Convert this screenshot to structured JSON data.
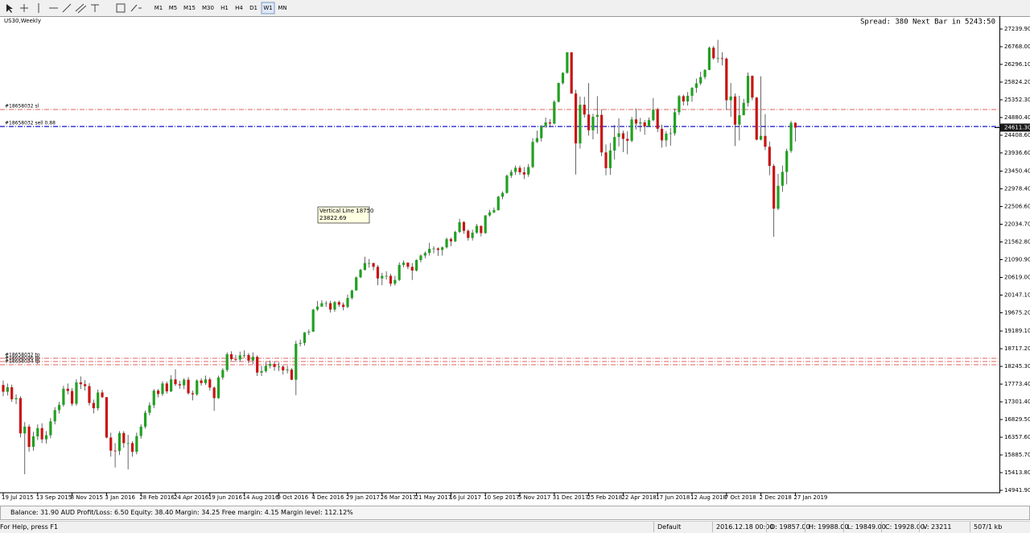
{
  "toolbar": {
    "timeframes": [
      "M1",
      "M5",
      "M15",
      "M30",
      "H1",
      "H4",
      "D1",
      "W1",
      "MN"
    ],
    "active": "W1"
  },
  "chart_data": {
    "type": "candlestick",
    "title": "US30,Weekly",
    "info": "Spread: 380 Next Bar in 5243:50",
    "up_color": "#22a022",
    "down_color": "#c81414",
    "wick_color": "#404040",
    "categories": [
      "19 Jul 2015",
      null,
      null,
      null,
      null,
      null,
      null,
      null,
      "13 Sep 2015",
      null,
      null,
      null,
      null,
      null,
      null,
      null,
      "8 Nov 2015",
      null,
      null,
      null,
      null,
      null,
      null,
      null,
      "3 Jan 2016",
      null,
      null,
      null,
      null,
      null,
      null,
      null,
      "28 Feb 2016",
      null,
      null,
      null,
      null,
      null,
      null,
      null,
      "24 Apr 2016",
      null,
      null,
      null,
      null,
      null,
      null,
      null,
      "19 Jun 2016",
      null,
      null,
      null,
      null,
      null,
      null,
      null,
      "14 Aug 2016",
      null,
      null,
      null,
      null,
      null,
      null,
      null,
      "9 Oct 2016",
      null,
      null,
      null,
      null,
      null,
      null,
      null,
      "4 Dec 2016",
      null,
      null,
      null,
      null,
      null,
      null,
      null,
      "29 Jan 2017",
      null,
      null,
      null,
      null,
      null,
      null,
      null,
      "26 Mar 2017",
      null,
      null,
      null,
      null,
      null,
      null,
      null,
      "21 May 2017",
      null,
      null,
      null,
      null,
      null,
      null,
      null,
      "16 Jul 2017",
      null,
      null,
      null,
      null,
      null,
      null,
      null,
      "10 Sep 2017",
      null,
      null,
      null,
      null,
      null,
      null,
      null,
      "5 Nov 2017",
      null,
      null,
      null,
      null,
      null,
      null,
      null,
      "31 Dec 2017",
      null,
      null,
      null,
      null,
      null,
      null,
      null,
      "25 Feb 2018",
      null,
      null,
      null,
      null,
      null,
      null,
      null,
      "22 Apr 2018",
      null,
      null,
      null,
      null,
      null,
      null,
      null,
      "17 Jun 2018",
      null,
      null,
      null,
      null,
      null,
      null,
      null,
      "12 Aug 2018",
      null,
      null,
      null,
      null,
      null,
      null,
      null,
      "7 Oct 2018",
      null,
      null,
      null,
      null,
      null,
      null,
      null,
      "2 Dec 2018",
      null,
      null,
      null,
      null,
      null,
      null,
      null,
      "27 Jan 2019"
    ],
    "open": [
      17750,
      17570,
      17690,
      17370,
      17400,
      16460,
      16640,
      16100,
      16380,
      16600,
      16300,
      16410,
      16780,
      17080,
      17220,
      17650,
      17590,
      17250,
      17820,
      17770,
      17720,
      17270,
      17130,
      17550,
      17425,
      16350,
      16000,
      15990,
      16470,
      16200,
      16200,
      15970,
      16390,
      16640,
      17010,
      17210,
      17600,
      17510,
      17790,
      17580,
      17900,
      17770,
      17740,
      17890,
      17530,
      17500,
      17870,
      17800,
      17900,
      17680,
      17400,
      17950,
      18150,
      18570,
      18440,
      18430,
      18540,
      18550,
      18400,
      18500,
      18080,
      18120,
      18260,
      18310,
      18230,
      18240,
      18140,
      18160,
      17890,
      18850,
      18870,
      19150,
      19170,
      19760,
      19840,
      19930,
      19930,
      19760,
      19960,
      19890,
      19830,
      20070,
      20270,
      20620,
      20820,
      21000,
      21000,
      20900,
      20590,
      20660,
      20660,
      20450,
      20550,
      20950,
      21010,
      20900,
      20800,
      21080,
      21200,
      21270,
      21380,
      21390,
      21350,
      21420,
      21640,
      21580,
      21830,
      22090,
      21860,
      21670,
      21810,
      21990,
      21800,
      22270,
      22350,
      22410,
      22770,
      22870,
      23330,
      23430,
      23540,
      23420,
      23360,
      23560,
      24230,
      24330,
      24650,
      24750,
      24720,
      25300,
      25800,
      26070,
      26620,
      25520,
      24190,
      25220,
      24960,
      24540,
      24900,
      24950,
      23950,
      23530,
      24000,
      24360,
      24460,
      24310,
      24260,
      24830,
      24720,
      24750,
      24640,
      24810,
      25090,
      24580,
      24270,
      24450,
      24460,
      25020,
      25450,
      25310,
      25460,
      25670,
      25790,
      25960,
      26150,
      26740,
      26460,
      26460,
      26450,
      25340,
      25440,
      24690,
      24940,
      25270,
      25990,
      25410,
      24290,
      24390,
      24100,
      23590,
      22450,
      23060,
      23430,
      23990,
      24740
    ],
    "high": [
      17870,
      17790,
      17760,
      17500,
      17450,
      16760,
      16700,
      16500,
      16700,
      16730,
      16520,
      16870,
      17160,
      17300,
      17730,
      17790,
      17670,
      17900,
      17980,
      17880,
      17800,
      17360,
      17630,
      17620,
      17430,
      16480,
      16200,
      16520,
      16520,
      16420,
      16250,
      16480,
      16700,
      17070,
      17290,
      17640,
      17640,
      17850,
      17840,
      18010,
      18170,
      17860,
      17930,
      17960,
      17600,
      17900,
      17930,
      18000,
      17950,
      17710,
      18000,
      18200,
      18620,
      18650,
      18550,
      18640,
      18670,
      18600,
      18620,
      18540,
      18260,
      18360,
      18400,
      18380,
      18350,
      18280,
      18260,
      18200,
      18930,
      18960,
      19160,
      19230,
      19780,
      19990,
      20010,
      19990,
      19990,
      19990,
      20000,
      19950,
      20160,
      20290,
      20640,
      20850,
      21170,
      21110,
      21010,
      20950,
      20740,
      20780,
      20710,
      20660,
      21020,
      21070,
      21020,
      21000,
      21100,
      21230,
      21310,
      21540,
      21450,
      21420,
      21440,
      21680,
      21680,
      21860,
      22180,
      22120,
      21900,
      21890,
      22040,
      22000,
      22280,
      22420,
      22480,
      22790,
      22910,
      23360,
      23490,
      23600,
      23600,
      23560,
      23640,
      24330,
      24530,
      24680,
      24880,
      24840,
      25340,
      25810,
      26090,
      26620,
      26610,
      25620,
      25440,
      25430,
      25800,
      24980,
      25450,
      25100,
      24160,
      24200,
      24680,
      24860,
      24530,
      24510,
      24900,
      25120,
      24870,
      24810,
      24880,
      25400,
      25140,
      24690,
      24520,
      24600,
      25120,
      25480,
      25490,
      25560,
      25690,
      25920,
      26100,
      26170,
      26770,
      26790,
      26950,
      26620,
      26480,
      25800,
      25520,
      25460,
      25380,
      26080,
      26000,
      25430,
      25980,
      24970,
      24240,
      23640,
      23380,
      23600,
      24050,
      24790,
      24750
    ],
    "low": [
      17450,
      17470,
      17300,
      17240,
      16350,
      15370,
      15970,
      16000,
      16280,
      16200,
      16190,
      16330,
      16700,
      16990,
      17170,
      17500,
      17190,
      17200,
      17640,
      17600,
      17200,
      16990,
      17070,
      17400,
      16330,
      15840,
      15550,
      15880,
      16080,
      15500,
      15840,
      15900,
      16320,
      16590,
      16940,
      17130,
      17420,
      17460,
      17520,
      17560,
      17720,
      17650,
      17640,
      17490,
      17340,
      17460,
      17730,
      17750,
      17600,
      17060,
      17380,
      17890,
      18100,
      18400,
      18370,
      18380,
      18470,
      18330,
      18300,
      17990,
      17990,
      18080,
      18190,
      18130,
      18120,
      18030,
      18060,
      17880,
      17480,
      18780,
      18800,
      19080,
      19170,
      19720,
      19830,
      19830,
      19680,
      19700,
      19830,
      19740,
      19800,
      20030,
      20270,
      20600,
      20800,
      20880,
      20810,
      20410,
      20410,
      20560,
      20380,
      20400,
      20520,
      20890,
      20840,
      20550,
      20780,
      21020,
      21130,
      21200,
      21260,
      21190,
      21200,
      21390,
      21450,
      21560,
      21800,
      21780,
      21600,
      21600,
      21780,
      21710,
      21780,
      22240,
      22330,
      22400,
      22700,
      22850,
      23270,
      23350,
      23350,
      23240,
      23300,
      23530,
      24200,
      24240,
      24600,
      24620,
      24700,
      25280,
      25760,
      26050,
      25510,
      23360,
      24050,
      24880,
      24400,
      24300,
      24450,
      23850,
      23340,
      23350,
      23760,
      24110,
      23960,
      23900,
      24220,
      24560,
      24500,
      24420,
      24640,
      24780,
      24490,
      24080,
      24100,
      24130,
      24400,
      24950,
      25200,
      25200,
      25300,
      25540,
      25740,
      25900,
      26140,
      26420,
      26340,
      26270,
      25080,
      24900,
      24120,
      24270,
      24950,
      25170,
      25340,
      24270,
      24270,
      24010,
      23340,
      21700,
      22410,
      22900,
      23100,
      23940,
      24240
    ],
    "close": [
      17570,
      17690,
      17370,
      17400,
      16460,
      16640,
      16100,
      16380,
      16600,
      16300,
      16410,
      16780,
      17080,
      17220,
      17650,
      17590,
      17250,
      17820,
      17770,
      17720,
      17270,
      17130,
      17550,
      17425,
      16350,
      16000,
      15990,
      16470,
      16200,
      16200,
      15970,
      16390,
      16640,
      17010,
      17210,
      17600,
      17510,
      17790,
      17580,
      17900,
      17770,
      17740,
      17890,
      17530,
      17500,
      17870,
      17800,
      17900,
      17680,
      17400,
      17950,
      18150,
      18570,
      18440,
      18430,
      18540,
      18550,
      18400,
      18500,
      18080,
      18120,
      18260,
      18310,
      18230,
      18240,
      18140,
      18160,
      17890,
      18850,
      18870,
      19150,
      19170,
      19760,
      19840,
      19930,
      19930,
      19760,
      19960,
      19890,
      19830,
      20070,
      20270,
      20620,
      20820,
      21000,
      21000,
      20900,
      20590,
      20660,
      20660,
      20450,
      20550,
      20950,
      21010,
      20900,
      20800,
      21080,
      21200,
      21270,
      21380,
      21390,
      21350,
      21420,
      21640,
      21580,
      21830,
      22090,
      21860,
      21670,
      21810,
      21990,
      21800,
      22270,
      22350,
      22410,
      22770,
      22870,
      23330,
      23430,
      23540,
      23420,
      23360,
      23560,
      24230,
      24330,
      24650,
      24750,
      24720,
      25300,
      25800,
      26070,
      26620,
      25520,
      24190,
      25220,
      24960,
      24540,
      24900,
      24950,
      23950,
      23530,
      24000,
      24360,
      24460,
      24310,
      24260,
      24830,
      24720,
      24750,
      24640,
      24810,
      25090,
      24580,
      24270,
      24450,
      24460,
      25020,
      25450,
      25310,
      25460,
      25670,
      25790,
      25960,
      26150,
      26740,
      26460,
      26460,
      26450,
      25340,
      25440,
      24690,
      24940,
      25270,
      25990,
      25410,
      24290,
      24390,
      24100,
      23590,
      22450,
      23060,
      23430,
      23990,
      24740,
      24610
    ],
    "ylim": [
      14941.9,
      27239.9
    ],
    "yticks": [
      {
        "value": 27239.9,
        "label": "27239.90"
      },
      {
        "value": 26768,
        "label": "26768.00"
      },
      {
        "value": 26296.1,
        "label": "26296.10"
      },
      {
        "value": 25824.2,
        "label": "25824.20"
      },
      {
        "value": 25352.3,
        "label": "25352.30"
      },
      {
        "value": 24880.4,
        "label": "24880.40"
      },
      {
        "value": 24408.6,
        "label": "24408.60"
      },
      {
        "value": 23936.6,
        "label": "23936.60"
      },
      {
        "value": 23450.4,
        "label": "23450.40"
      },
      {
        "value": 22978.4,
        "label": "22978.40"
      },
      {
        "value": 22506.6,
        "label": "22506.60"
      },
      {
        "value": 22034.7,
        "label": "22034.70"
      },
      {
        "value": 21562.8,
        "label": "21562.80"
      },
      {
        "value": 21090.9,
        "label": "21090.90"
      },
      {
        "value": 20619,
        "label": "20619.00"
      },
      {
        "value": 20147.1,
        "label": "20147.10"
      },
      {
        "value": 19675.2,
        "label": "19675.20"
      },
      {
        "value": 19189.1,
        "label": "19189.10"
      },
      {
        "value": 18717.2,
        "label": "18717.20"
      },
      {
        "value": 18245.3,
        "label": "18245.30"
      },
      {
        "value": 17773.4,
        "label": "17773.40"
      },
      {
        "value": 17301.4,
        "label": "17301.40"
      },
      {
        "value": 16829.5,
        "label": "16829.50"
      },
      {
        "value": 16357.6,
        "label": "16357.60"
      },
      {
        "value": 15885.7,
        "label": "15885.70"
      },
      {
        "value": 15413.8,
        "label": "15413.80"
      },
      {
        "value": 14941.9,
        "label": "14941.90"
      }
    ],
    "current_price": {
      "value": 24611.3,
      "label": "24611.30"
    },
    "lines": [
      {
        "label": "#18658032 sl",
        "value": 25094,
        "color": "#e06060"
      },
      {
        "label": "#18658032 sell 0.88",
        "value": 24640,
        "color": "#3a3ad8"
      },
      {
        "label": "#18658032 tp",
        "value": 18461,
        "color": "#e06060"
      },
      {
        "label": "#18658036 tp",
        "value": 18375,
        "color": "#e06060"
      },
      {
        "label": "#18658034 tp",
        "value": 18290,
        "color": "#e06060"
      }
    ],
    "annotation": {
      "title": "Vertical Line 18750",
      "price": "23822.69"
    }
  },
  "account": {
    "text": "Balance: 31.90 AUD  Profit/Loss: 6.50  Equity: 38.40  Margin: 34.25  Free margin: 4.15  Margin level: 112.12%"
  },
  "status": {
    "help": "For Help, press F1",
    "profile": "Default",
    "time": "2016.12.18 00:00",
    "open": "O: 19857.00",
    "high": "H: 19988.00",
    "low": "L: 19849.00",
    "close": "C: 19928.00",
    "volume": "V: 23211",
    "traffic": "507/1 kb"
  }
}
